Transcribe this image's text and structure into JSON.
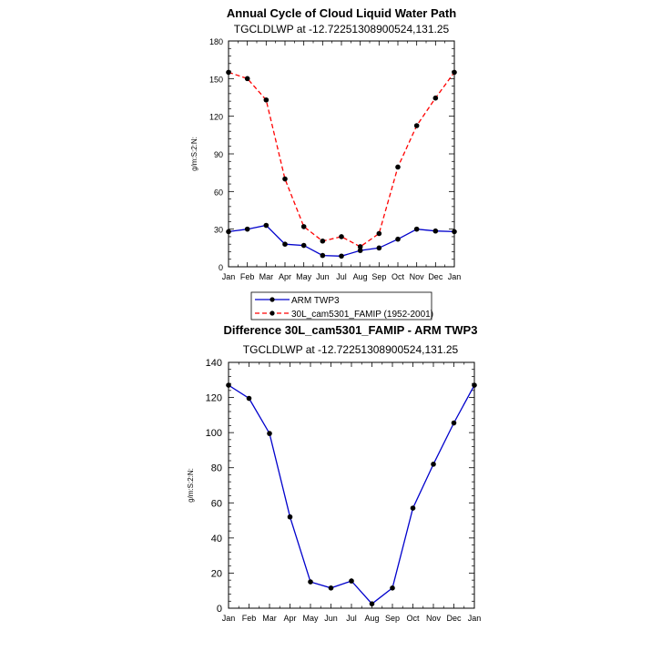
{
  "chart_data": [
    {
      "type": "line",
      "title": "Annual Cycle of Cloud Liquid Water Path",
      "subtitle": "TGCLDLWP at -12.72251308900524,131.25",
      "ylabel": "g/m:S:2:N:",
      "xlabel": "",
      "categories": [
        "Jan",
        "Feb",
        "Mar",
        "Apr",
        "May",
        "Jun",
        "Jul",
        "Aug",
        "Sep",
        "Oct",
        "Nov",
        "Dec",
        "Jan"
      ],
      "ylim": [
        0,
        180
      ],
      "yticks": [
        "0",
        "30",
        "60",
        "90",
        "120",
        "150",
        "180"
      ],
      "grid": false,
      "legend_placement": "bottom",
      "series": [
        {
          "name": "ARM TWP3",
          "color": "#0000cc",
          "dash": "solid",
          "values": [
            28,
            30,
            33,
            18,
            17,
            9,
            8.5,
            13,
            15,
            22,
            30,
            28.5,
            28
          ]
        },
        {
          "name": "30L_cam5301_FAMIP (1952-2001)",
          "color": "#ff0000",
          "dash": "dashed",
          "values": [
            155,
            150,
            133,
            70,
            32,
            20.5,
            24,
            16,
            26.5,
            79.5,
            112.5,
            134.5,
            155
          ]
        }
      ]
    },
    {
      "type": "line",
      "title": "Difference 30L_cam5301_FAMIP - ARM TWP3",
      "subtitle": "TGCLDLWP at -12.72251308900524,131.25",
      "ylabel": "g/m:S:2:N:",
      "xlabel": "",
      "categories": [
        "Jan",
        "Feb",
        "Mar",
        "Apr",
        "May",
        "Jun",
        "Jul",
        "Aug",
        "Sep",
        "Oct",
        "Nov",
        "Dec",
        "Jan"
      ],
      "ylim": [
        0,
        140
      ],
      "yticks": [
        "0",
        "20",
        "40",
        "60",
        "80",
        "100",
        "120",
        "140"
      ],
      "grid": false,
      "series": [
        {
          "color": "#0000cc",
          "dash": "solid",
          "values": [
            127,
            119.5,
            99.5,
            52,
            15,
            11.5,
            15.5,
            2.5,
            11.5,
            57,
            82,
            105.5,
            127
          ]
        }
      ]
    }
  ]
}
